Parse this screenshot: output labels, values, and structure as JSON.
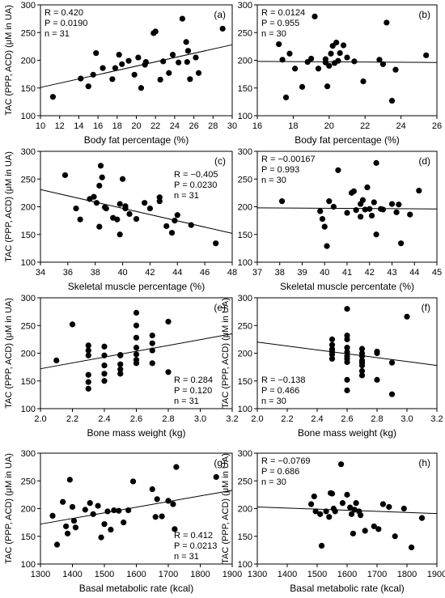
{
  "chart_data": [
    {
      "type": "scatter",
      "panel": "(a)",
      "xlabel": "Body fat percentage (%)",
      "ylabel": "TAC (PPP, ACD) (μM in UA)",
      "xlim": [
        10,
        30
      ],
      "ylim": [
        100,
        300
      ],
      "xticks": [
        10,
        12,
        14,
        16,
        18,
        20,
        22,
        24,
        26,
        28,
        30
      ],
      "yticks": [
        100,
        150,
        200,
        250,
        300
      ],
      "stats": [
        "R = 0.420",
        "P = 0.0190",
        "n = 31"
      ],
      "stats_position": "top-left",
      "regression": [
        [
          10,
          151
        ],
        [
          30,
          228
        ]
      ],
      "points": [
        [
          11.3,
          134
        ],
        [
          14.2,
          167
        ],
        [
          15.0,
          153
        ],
        [
          15.5,
          174
        ],
        [
          15.8,
          213
        ],
        [
          16.5,
          186
        ],
        [
          17.5,
          166
        ],
        [
          17.8,
          186
        ],
        [
          18.2,
          210
        ],
        [
          18.5,
          193
        ],
        [
          19.2,
          199
        ],
        [
          19.8,
          174
        ],
        [
          20.2,
          205
        ],
        [
          20.5,
          150
        ],
        [
          20.9,
          192
        ],
        [
          21.0,
          197
        ],
        [
          21.8,
          249
        ],
        [
          22.0,
          252
        ],
        [
          22.5,
          165
        ],
        [
          22.8,
          198
        ],
        [
          23.4,
          177
        ],
        [
          23.8,
          210
        ],
        [
          24.8,
          275
        ],
        [
          25.2,
          233
        ],
        [
          25.3,
          197
        ],
        [
          25.4,
          217
        ],
        [
          25.6,
          166
        ],
        [
          26.2,
          205
        ],
        [
          26.5,
          177
        ],
        [
          29.0,
          257
        ],
        [
          24.4,
          196
        ]
      ]
    },
    {
      "type": "scatter",
      "panel": "(b)",
      "xlabel": "Body fat percentage (%)",
      "ylabel": "",
      "xlim": [
        16,
        26
      ],
      "ylim": [
        100,
        300
      ],
      "xticks": [
        16,
        18,
        20,
        22,
        24,
        26
      ],
      "yticks": [
        100,
        150,
        200,
        250,
        300
      ],
      "stats": [
        "R = 0.0124",
        "P = 0.955",
        "n = 30"
      ],
      "stats_position": "top-left",
      "regression": [
        [
          16,
          198
        ],
        [
          26,
          196
        ]
      ],
      "points": [
        [
          17.2,
          229
        ],
        [
          17.4,
          201
        ],
        [
          17.6,
          133
        ],
        [
          17.8,
          212
        ],
        [
          18.1,
          185
        ],
        [
          18.5,
          152
        ],
        [
          18.8,
          197
        ],
        [
          19.0,
          203
        ],
        [
          19.2,
          279
        ],
        [
          19.4,
          185
        ],
        [
          19.8,
          196
        ],
        [
          19.8,
          202
        ],
        [
          19.9,
          153
        ],
        [
          20.0,
          190
        ],
        [
          20.1,
          212
        ],
        [
          20.2,
          226
        ],
        [
          20.3,
          195
        ],
        [
          20.4,
          232
        ],
        [
          20.5,
          199
        ],
        [
          20.6,
          213
        ],
        [
          20.8,
          227
        ],
        [
          21.0,
          205
        ],
        [
          21.4,
          198
        ],
        [
          21.9,
          162
        ],
        [
          22.8,
          201
        ],
        [
          23.0,
          193
        ],
        [
          23.2,
          268
        ],
        [
          23.5,
          127
        ],
        [
          23.7,
          183
        ],
        [
          25.4,
          209
        ]
      ]
    },
    {
      "type": "scatter",
      "panel": "(c)",
      "xlabel": "Skeletal muscle percentage (%)",
      "ylabel": "TAC (PPP, ACD) (μM in UA)",
      "xlim": [
        34,
        48
      ],
      "ylim": [
        100,
        300
      ],
      "xticks": [
        34,
        36,
        38,
        40,
        42,
        44,
        46,
        48
      ],
      "yticks": [
        100,
        150,
        200,
        250,
        300
      ],
      "stats": [
        "R = −0.405",
        "P = 0.0230",
        "n = 31"
      ],
      "stats_position": "top-right",
      "regression": [
        [
          34,
          231
        ],
        [
          48,
          152
        ]
      ],
      "points": [
        [
          35.8,
          257
        ],
        [
          36.6,
          197
        ],
        [
          36.9,
          177
        ],
        [
          37.6,
          214
        ],
        [
          37.9,
          218
        ],
        [
          38.1,
          207
        ],
        [
          38.3,
          164
        ],
        [
          38.3,
          238
        ],
        [
          38.4,
          274
        ],
        [
          38.5,
          253
        ],
        [
          38.7,
          199
        ],
        [
          38.8,
          197
        ],
        [
          39.3,
          180
        ],
        [
          39.6,
          177
        ],
        [
          39.8,
          205
        ],
        [
          39.8,
          150
        ],
        [
          40.0,
          250
        ],
        [
          40.2,
          197
        ],
        [
          40.5,
          187
        ],
        [
          41.0,
          178
        ],
        [
          41.6,
          207
        ],
        [
          42.0,
          197
        ],
        [
          42.7,
          210
        ],
        [
          42.7,
          217
        ],
        [
          43.2,
          165
        ],
        [
          43.6,
          153
        ],
        [
          43.8,
          175
        ],
        [
          44.0,
          185
        ],
        [
          45.0,
          167
        ],
        [
          46.8,
          134
        ],
        [
          40.2,
          201
        ]
      ]
    },
    {
      "type": "scatter",
      "panel": "(d)",
      "xlabel": "Skeletal muscle percentate (%)",
      "ylabel": "",
      "xlim": [
        37,
        45
      ],
      "ylim": [
        100,
        300
      ],
      "xticks": [
        37,
        38,
        39,
        40,
        41,
        42,
        43,
        44,
        45
      ],
      "yticks": [
        100,
        150,
        200,
        250,
        300
      ],
      "stats": [
        "R = −0.00167",
        "P = 0.993",
        "n = 30"
      ],
      "stats_position": "top-left",
      "regression": [
        [
          37,
          198
        ],
        [
          45,
          196
        ]
      ],
      "points": [
        [
          38.1,
          210
        ],
        [
          39.8,
          192
        ],
        [
          39.9,
          178
        ],
        [
          40.0,
          164
        ],
        [
          40.1,
          129
        ],
        [
          40.2,
          210
        ],
        [
          40.4,
          200
        ],
        [
          40.6,
          266
        ],
        [
          41.0,
          189
        ],
        [
          41.2,
          225
        ],
        [
          41.3,
          228
        ],
        [
          41.4,
          194
        ],
        [
          41.6,
          205
        ],
        [
          41.6,
          182
        ],
        [
          41.7,
          212
        ],
        [
          41.8,
          195
        ],
        [
          41.9,
          235
        ],
        [
          42.0,
          196
        ],
        [
          42.1,
          184
        ],
        [
          42.2,
          208
        ],
        [
          42.3,
          279
        ],
        [
          42.3,
          150
        ],
        [
          42.5,
          196
        ],
        [
          42.6,
          195
        ],
        [
          43.0,
          205
        ],
        [
          43.2,
          190
        ],
        [
          43.3,
          204
        ],
        [
          43.4,
          134
        ],
        [
          43.8,
          186
        ],
        [
          44.2,
          229
        ]
      ]
    },
    {
      "type": "scatter",
      "panel": "(e)",
      "xlabel": "Bone mass weight (kg)",
      "ylabel": "TAC (PPP, ACD) (μM in UA)",
      "xlim": [
        2.0,
        3.2
      ],
      "ylim": [
        100,
        300
      ],
      "xticks": [
        2.0,
        2.2,
        2.4,
        2.6,
        2.8,
        3.0,
        3.2
      ],
      "yticks": [
        100,
        150,
        200,
        250,
        300
      ],
      "stats": [
        "R = 0.284",
        "P = 0.120",
        "n = 31"
      ],
      "stats_position": "bottom-right",
      "regression": [
        [
          2.0,
          172
        ],
        [
          3.2,
          235
        ]
      ],
      "points": [
        [
          2.1,
          187
        ],
        [
          2.2,
          252
        ],
        [
          2.3,
          214
        ],
        [
          2.3,
          205
        ],
        [
          2.3,
          196
        ],
        [
          2.3,
          161
        ],
        [
          2.3,
          148
        ],
        [
          2.3,
          136
        ],
        [
          2.4,
          212
        ],
        [
          2.4,
          196
        ],
        [
          2.4,
          178
        ],
        [
          2.4,
          163
        ],
        [
          2.4,
          150
        ],
        [
          2.5,
          196
        ],
        [
          2.5,
          180
        ],
        [
          2.5,
          171
        ],
        [
          2.5,
          163
        ],
        [
          2.6,
          273
        ],
        [
          2.6,
          250
        ],
        [
          2.6,
          228
        ],
        [
          2.6,
          210
        ],
        [
          2.6,
          198
        ],
        [
          2.6,
          188
        ],
        [
          2.6,
          182
        ],
        [
          2.7,
          232
        ],
        [
          2.7,
          218
        ],
        [
          2.7,
          205
        ],
        [
          2.7,
          182
        ],
        [
          2.8,
          257
        ],
        [
          2.8,
          166
        ],
        [
          2.5,
          197
        ]
      ]
    },
    {
      "type": "scatter",
      "panel": "(f)",
      "xlabel": "Bone mass weight (kg)",
      "ylabel": "TAC (PPP, ACD) (μM in UA)",
      "xlim": [
        2.0,
        3.2
      ],
      "ylim": [
        100,
        300
      ],
      "xticks": [
        2.0,
        2.2,
        2.4,
        2.6,
        2.8,
        3.0,
        3.2
      ],
      "yticks": [
        100,
        150,
        200,
        250,
        300
      ],
      "stats": [
        "R = −0.138",
        "P = 0.466",
        "n = 30"
      ],
      "stats_position": "bottom-left",
      "regression": [
        [
          2.0,
          220
        ],
        [
          3.2,
          178
        ]
      ],
      "points": [
        [
          2.5,
          225
        ],
        [
          2.5,
          215
        ],
        [
          2.5,
          207
        ],
        [
          2.5,
          198
        ],
        [
          2.5,
          190
        ],
        [
          2.6,
          280
        ],
        [
          2.6,
          232
        ],
        [
          2.6,
          225
        ],
        [
          2.6,
          210
        ],
        [
          2.6,
          202
        ],
        [
          2.6,
          195
        ],
        [
          2.6,
          184
        ],
        [
          2.6,
          152
        ],
        [
          2.6,
          133
        ],
        [
          2.7,
          208
        ],
        [
          2.7,
          200
        ],
        [
          2.7,
          195
        ],
        [
          2.7,
          187
        ],
        [
          2.7,
          178
        ],
        [
          2.7,
          168
        ],
        [
          2.7,
          160
        ],
        [
          2.8,
          203
        ],
        [
          2.8,
          200
        ],
        [
          2.8,
          152
        ],
        [
          2.9,
          183
        ],
        [
          2.9,
          126
        ],
        [
          3.0,
          266
        ],
        [
          2.5,
          203
        ],
        [
          2.6,
          190
        ],
        [
          2.7,
          183
        ]
      ]
    },
    {
      "type": "scatter",
      "panel": "(g)",
      "xlabel": "Basal metabolic rate (kcal)",
      "ylabel": "TAC (PPP, ACD) (μM in UA)",
      "xlim": [
        1300,
        1900
      ],
      "ylim": [
        100,
        300
      ],
      "xticks": [
        1300,
        1400,
        1500,
        1600,
        1700,
        1800,
        1900
      ],
      "yticks": [
        100,
        150,
        200,
        250,
        300
      ],
      "stats": [
        "R = 0.412",
        "P = 0.0213",
        "n = 31"
      ],
      "stats_position": "bottom-right",
      "regression": [
        [
          1300,
          172
        ],
        [
          1900,
          233
        ]
      ],
      "points": [
        [
          1338,
          187
        ],
        [
          1352,
          135
        ],
        [
          1370,
          212
        ],
        [
          1380,
          168
        ],
        [
          1385,
          155
        ],
        [
          1392,
          252
        ],
        [
          1400,
          203
        ],
        [
          1405,
          178
        ],
        [
          1410,
          166
        ],
        [
          1440,
          198
        ],
        [
          1455,
          210
        ],
        [
          1465,
          190
        ],
        [
          1480,
          205
        ],
        [
          1490,
          148
        ],
        [
          1500,
          172
        ],
        [
          1510,
          195
        ],
        [
          1520,
          162
        ],
        [
          1530,
          197
        ],
        [
          1545,
          196
        ],
        [
          1560,
          175
        ],
        [
          1575,
          197
        ],
        [
          1590,
          249
        ],
        [
          1650,
          235
        ],
        [
          1660,
          185
        ],
        [
          1665,
          217
        ],
        [
          1680,
          186
        ],
        [
          1700,
          214
        ],
        [
          1715,
          208
        ],
        [
          1725,
          275
        ],
        [
          1720,
          163
        ],
        [
          1850,
          257
        ]
      ]
    },
    {
      "type": "scatter",
      "panel": "(h)",
      "xlabel": "Basal metabolic rate (kcal)",
      "ylabel": "TAC (PPP, ACD) (μM in UA)",
      "xlim": [
        1300,
        1900
      ],
      "ylim": [
        100,
        300
      ],
      "xticks": [
        1300,
        1400,
        1500,
        1600,
        1700,
        1800,
        1900
      ],
      "yticks": [
        100,
        150,
        200,
        250,
        300
      ],
      "stats": [
        "R = −0.0769",
        "P = 0.686",
        "n = 30"
      ],
      "stats_position": "top-left",
      "regression": [
        [
          1300,
          203
        ],
        [
          1900,
          191
        ]
      ],
      "points": [
        [
          1480,
          208
        ],
        [
          1490,
          222
        ],
        [
          1495,
          195
        ],
        [
          1510,
          190
        ],
        [
          1515,
          133
        ],
        [
          1530,
          195
        ],
        [
          1540,
          185
        ],
        [
          1545,
          228
        ],
        [
          1550,
          227
        ],
        [
          1555,
          200
        ],
        [
          1560,
          195
        ],
        [
          1580,
          280
        ],
        [
          1585,
          210
        ],
        [
          1600,
          225
        ],
        [
          1610,
          202
        ],
        [
          1615,
          190
        ],
        [
          1620,
          155
        ],
        [
          1625,
          198
        ],
        [
          1630,
          210
        ],
        [
          1640,
          195
        ],
        [
          1645,
          188
        ],
        [
          1660,
          160
        ],
        [
          1690,
          168
        ],
        [
          1705,
          163
        ],
        [
          1720,
          208
        ],
        [
          1740,
          203
        ],
        [
          1760,
          150
        ],
        [
          1790,
          200
        ],
        [
          1815,
          130
        ],
        [
          1850,
          183
        ]
      ]
    }
  ]
}
